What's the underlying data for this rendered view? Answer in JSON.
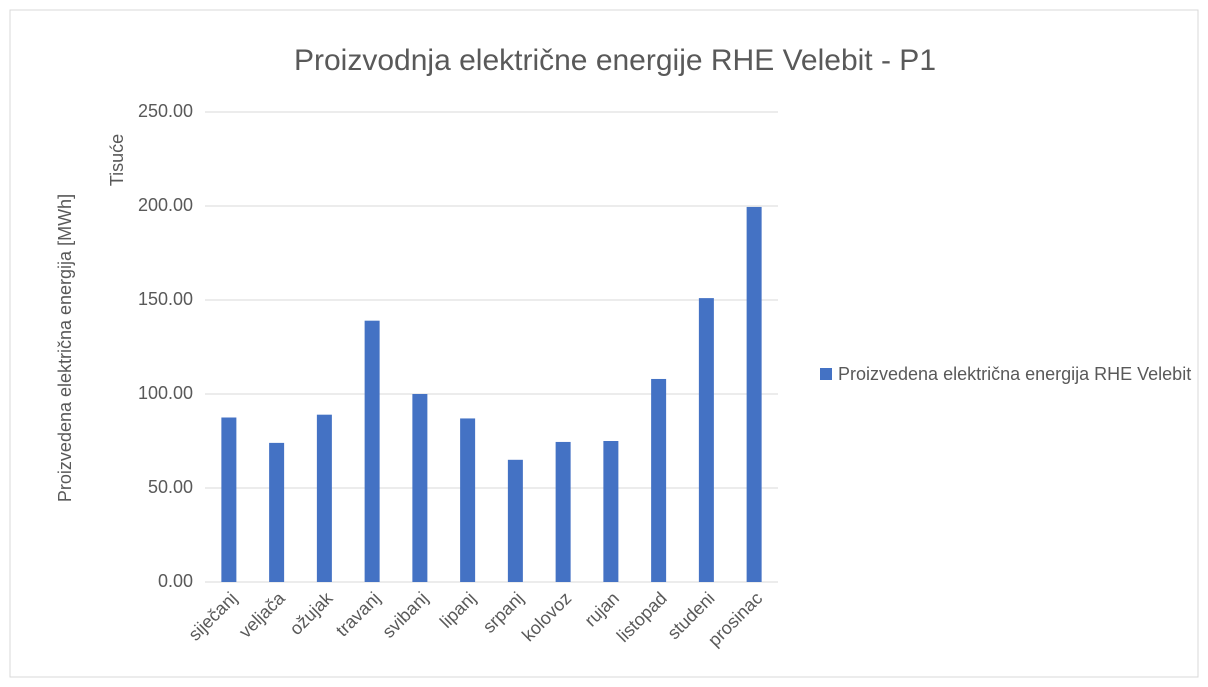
{
  "chart_data": {
    "type": "bar",
    "title": "Proizvodnja električne energije RHE Velebit - P1",
    "y_axis_label": "Proizvedena električna energija [MWh]",
    "display_units_label": "Tisuće",
    "categories": [
      "siječanj",
      "veljača",
      "ožujak",
      "travanj",
      "svibanj",
      "lipanj",
      "srpanj",
      "kolovoz",
      "rujan",
      "listopad",
      "studeni",
      "prosinac"
    ],
    "series": [
      {
        "name": "Proizvedena električna energija RHE Velebit",
        "color": "#4472c4",
        "values": [
          87.5,
          74,
          89,
          139,
          100,
          87,
          65,
          74.5,
          75,
          108,
          151,
          199.5
        ]
      }
    ],
    "ylim": [
      0,
      250
    ],
    "yticks": [
      {
        "value": 0,
        "label": "0.00"
      },
      {
        "value": 50,
        "label": "50.00"
      },
      {
        "value": 100,
        "label": "100.00"
      },
      {
        "value": 150,
        "label": "150.00"
      },
      {
        "value": 200,
        "label": "200.00"
      },
      {
        "value": 250,
        "label": "250.00"
      }
    ],
    "grid": true,
    "legend": "right"
  }
}
